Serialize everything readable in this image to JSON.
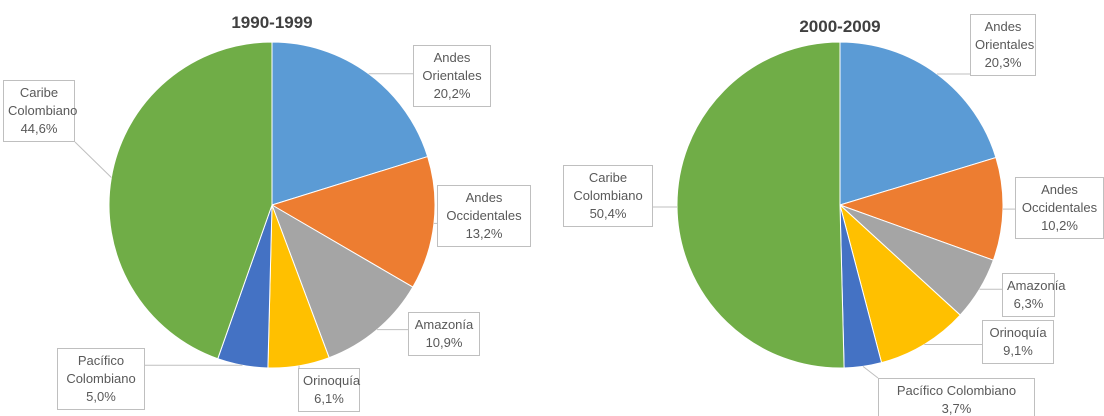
{
  "chart_data": [
    {
      "type": "pie",
      "title": "1990-1999",
      "categories": [
        "Andes Orientales",
        "Andes Occidentales",
        "Amazonía",
        "Orinoquía",
        "Pacífico Colombiano",
        "Caribe Colombiano"
      ],
      "values": [
        20.2,
        13.2,
        10.9,
        6.1,
        5.0,
        44.6
      ],
      "value_labels": [
        "20,2%",
        "13,2%",
        "10,9%",
        "6,1%",
        "5,0%",
        "44,6%"
      ],
      "colors": [
        "#5b9bd5",
        "#ed7d31",
        "#a5a5a5",
        "#ffc000",
        "#4472c4",
        "#70ad47"
      ]
    },
    {
      "type": "pie",
      "title": "2000-2009",
      "categories": [
        "Andes Orientales",
        "Andes Occidentales",
        "Amazonía",
        "Orinoquía",
        "Pacífico Colombiano",
        "Caribe Colombiano"
      ],
      "values": [
        20.3,
        10.2,
        6.3,
        9.1,
        3.7,
        50.4
      ],
      "value_labels": [
        "20,3%",
        "10,2%",
        "6,3%",
        "9,1%",
        "3,7%",
        "50,4%"
      ],
      "colors": [
        "#5b9bd5",
        "#ed7d31",
        "#a5a5a5",
        "#ffc000",
        "#4472c4",
        "#70ad47"
      ]
    }
  ]
}
